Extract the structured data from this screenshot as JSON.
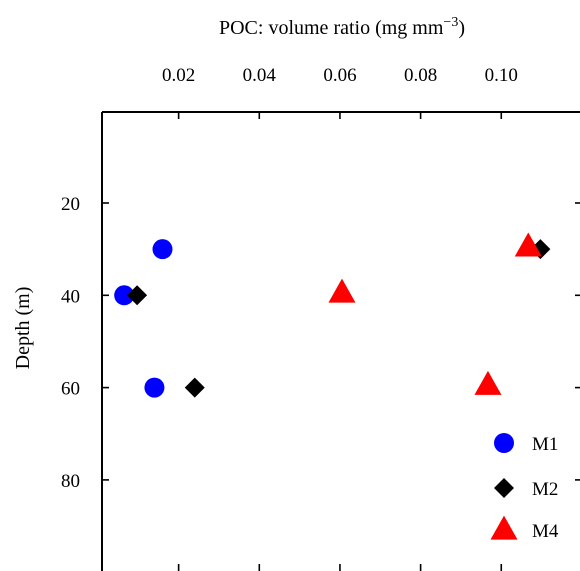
{
  "chart_data": {
    "type": "scatter",
    "xlabel": {
      "main": "POC: volume ratio (mg mm",
      "sup": "−3",
      "close": ")"
    },
    "ylabel": "Depth (m)",
    "x_axis_position": "top",
    "y_inverted": true,
    "xlim": [
      0.0,
      0.118
    ],
    "ylim": [
      0,
      100
    ],
    "x_ticks": [
      0.02,
      0.04,
      0.06,
      0.08,
      0.1
    ],
    "x_tick_labels": [
      "0.02",
      "0.04",
      "0.06",
      "0.08",
      "0.10"
    ],
    "y_ticks": [
      20,
      40,
      60,
      80
    ],
    "y_tick_labels": [
      "20",
      "40",
      "60",
      "80"
    ],
    "grid": false,
    "legend_position": "bottom-right",
    "series": [
      {
        "name": "M1",
        "marker": "circle",
        "color": "#0000ff",
        "points": [
          {
            "x": 0.016,
            "y": 30
          },
          {
            "x": 0.0065,
            "y": 40
          },
          {
            "x": 0.014,
            "y": 60
          }
        ]
      },
      {
        "name": "M2",
        "marker": "diamond",
        "color": "#000000",
        "points": [
          {
            "x": 0.0097,
            "y": 40
          },
          {
            "x": 0.024,
            "y": 60
          },
          {
            "x": 0.1097,
            "y": 30
          }
        ]
      },
      {
        "name": "M4",
        "marker": "triangle",
        "color": "#ff0000",
        "points": [
          {
            "x": 0.1067,
            "y": 29.5
          },
          {
            "x": 0.0605,
            "y": 39.5
          },
          {
            "x": 0.0967,
            "y": 59.5
          }
        ]
      }
    ]
  }
}
